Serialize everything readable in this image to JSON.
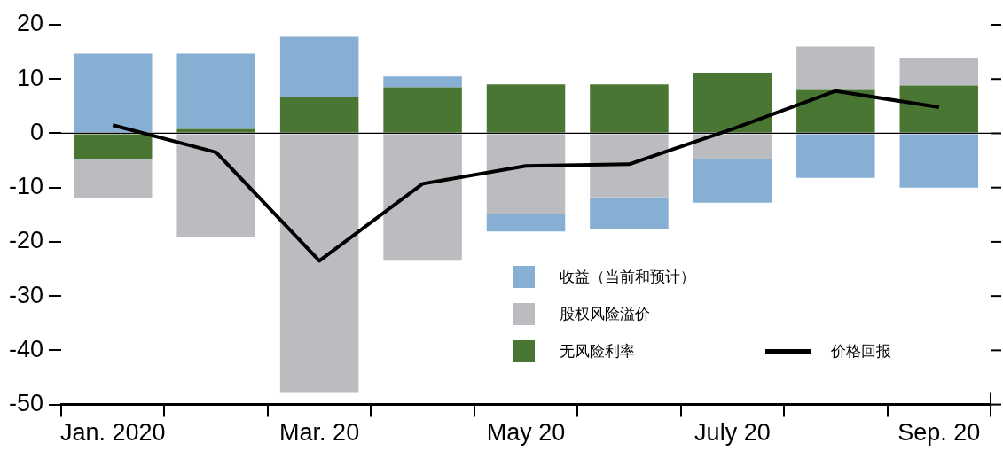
{
  "chart_data": {
    "type": "bar",
    "stacked": true,
    "categories": [
      "Jan. 2020",
      null,
      "Mar. 20",
      null,
      "May 20",
      null,
      "July 20",
      null,
      "Sep. 20"
    ],
    "series": [
      {
        "name": "无风险利率",
        "color": "#4a7634",
        "values": [
          -4.8,
          0.8,
          6.7,
          8.5,
          9,
          9,
          11.2,
          8,
          8.8
        ]
      },
      {
        "name": "股权风险溢价",
        "color": "#bbbcbf",
        "values": [
          -7.2,
          -19.2,
          -47.7,
          -23.5,
          -14.8,
          -11.8,
          -4.8,
          8,
          5
        ]
      },
      {
        "name": "收益（当前和预计）",
        "color": "#87aed3",
        "values": [
          14.7,
          13.9,
          11.1,
          2,
          -3.3,
          -5.9,
          -8,
          -8.2,
          -10
        ]
      },
      {
        "name": "价格回报",
        "type": "line",
        "color": "#000000",
        "values": [
          1.5,
          -3.5,
          -23.5,
          -9.3,
          -6,
          -5.7,
          0.8,
          7.8,
          4.8
        ]
      }
    ],
    "ylim": [
      -50,
      20
    ],
    "yticks": [
      -50,
      -40,
      -30,
      -20,
      -10,
      0,
      10,
      20
    ],
    "ref_lines": [
      {
        "axis": "y",
        "value": 0,
        "color": "#000000"
      }
    ],
    "grid": false,
    "legend": "bottom",
    "marker": "none",
    "line_style": "solid"
  }
}
